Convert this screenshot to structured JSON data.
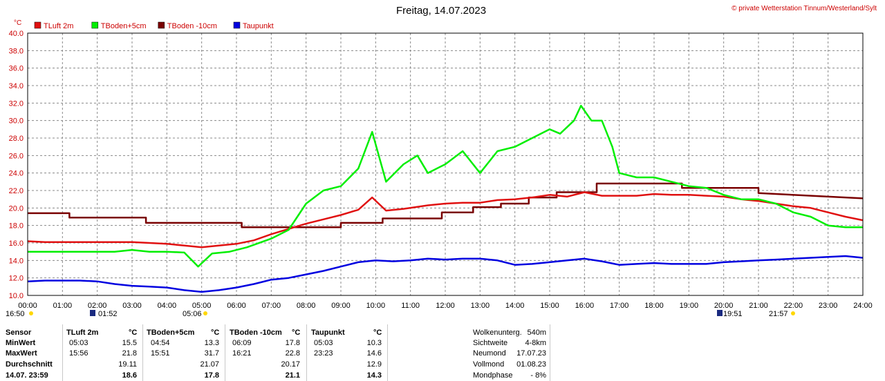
{
  "header": {
    "title": "Freitag, 14.07.2023",
    "copyright": "© private Wetterstation Tinnum/Westerland/Sylt",
    "unit": "°C"
  },
  "legend": [
    {
      "name": "TLuft 2m",
      "color": "#e01010"
    },
    {
      "name": "TBoden+5cm",
      "color": "#00ee00"
    },
    {
      "name": "TBoden -10cm",
      "color": "#7a0000"
    },
    {
      "name": "Taupunkt",
      "color": "#0000e0"
    }
  ],
  "chart_data": {
    "type": "line",
    "title": "Freitag, 14.07.2023",
    "ylabel": "°C",
    "xlim": [
      0,
      24
    ],
    "ylim": [
      10,
      40
    ],
    "grid": true,
    "legend_position": "top-left",
    "y_ticks": [
      "10.0",
      "12.0",
      "14.0",
      "16.0",
      "18.0",
      "20.0",
      "22.0",
      "24.0",
      "26.0",
      "28.0",
      "30.0",
      "32.0",
      "34.0",
      "36.0",
      "38.0",
      "40.0"
    ],
    "x_ticks": [
      "00:00",
      "01:00",
      "02:00",
      "03:00",
      "04:00",
      "05:00",
      "06:00",
      "07:00",
      "08:00",
      "09:00",
      "10:00",
      "11:00",
      "12:00",
      "13:00",
      "14:00",
      "15:00",
      "16:00",
      "17:00",
      "18:00",
      "19:00",
      "20:00",
      "21:00",
      "22:00",
      "23:00",
      "24:00"
    ],
    "sun_moon_times": [
      "16:50",
      "01:52",
      "05:06",
      "19:51",
      "21:57"
    ],
    "series": [
      {
        "name": "TLuft 2m",
        "color": "#e01010",
        "x": [
          0,
          0.5,
          1,
          1.5,
          2,
          2.5,
          3,
          3.5,
          4,
          4.5,
          5,
          5.5,
          6,
          6.5,
          7,
          7.5,
          8,
          8.5,
          9,
          9.5,
          9.9,
          10.3,
          10.8,
          11.5,
          12,
          12.5,
          13,
          13.5,
          14,
          14.5,
          15,
          15.5,
          16,
          16.5,
          17,
          17.5,
          18,
          18.5,
          19,
          19.5,
          20,
          20.5,
          21,
          21.5,
          22,
          22.5,
          23,
          23.5,
          24
        ],
        "values": [
          16.2,
          16.1,
          16.1,
          16.1,
          16.1,
          16.1,
          16.1,
          16.0,
          15.9,
          15.7,
          15.5,
          15.7,
          15.9,
          16.3,
          17.0,
          17.6,
          18.2,
          18.7,
          19.2,
          19.8,
          21.2,
          19.7,
          19.9,
          20.3,
          20.5,
          20.6,
          20.6,
          20.9,
          21.0,
          21.2,
          21.5,
          21.3,
          21.8,
          21.4,
          21.4,
          21.4,
          21.6,
          21.5,
          21.5,
          21.4,
          21.3,
          21.0,
          20.8,
          20.5,
          20.2,
          20.0,
          19.5,
          19.0,
          18.6
        ]
      },
      {
        "name": "TBoden+5cm",
        "color": "#00ee00",
        "x": [
          0,
          0.5,
          1,
          1.5,
          2,
          2.5,
          3,
          3.5,
          4,
          4.5,
          4.9,
          5.3,
          5.8,
          6.3,
          7,
          7.5,
          8,
          8.5,
          9,
          9.5,
          9.9,
          10.3,
          10.8,
          11.2,
          11.5,
          12,
          12.5,
          13,
          13.5,
          14,
          14.5,
          15,
          15.3,
          15.7,
          15.9,
          16.2,
          16.5,
          16.8,
          17,
          17.5,
          18,
          18.5,
          19,
          19.5,
          20,
          20.5,
          21,
          21.5,
          22,
          22.5,
          23,
          23.5,
          24
        ],
        "values": [
          15.0,
          15.0,
          15.0,
          15.0,
          15.0,
          15.0,
          15.2,
          15.0,
          15.0,
          14.9,
          13.3,
          14.8,
          15.0,
          15.5,
          16.5,
          17.5,
          20.5,
          22.0,
          22.5,
          24.5,
          28.7,
          23.0,
          25.0,
          26.0,
          24.0,
          25.0,
          26.5,
          24.0,
          26.5,
          27.0,
          28.0,
          29.0,
          28.5,
          30.0,
          31.7,
          30.0,
          30.0,
          27.0,
          24.0,
          23.5,
          23.5,
          23.0,
          22.5,
          22.3,
          21.5,
          21.0,
          21.0,
          20.5,
          19.5,
          19.0,
          18.0,
          17.8,
          17.8
        ]
      },
      {
        "name": "TBoden -10cm",
        "color": "#7a0000",
        "x": [
          0,
          1.2,
          1.2,
          3.4,
          3.4,
          6.15,
          6.15,
          9,
          9,
          10.2,
          10.2,
          11.9,
          11.9,
          12.8,
          12.8,
          13.6,
          13.6,
          14.4,
          14.4,
          15.2,
          15.2,
          16.35,
          16.35,
          18.8,
          18.8,
          21,
          21,
          24
        ],
        "values": [
          19.4,
          19.4,
          18.9,
          18.9,
          18.3,
          18.3,
          17.8,
          17.8,
          18.3,
          18.3,
          18.8,
          18.8,
          19.5,
          19.5,
          20.1,
          20.1,
          20.5,
          20.5,
          21.2,
          21.2,
          21.8,
          21.8,
          22.8,
          22.8,
          22.3,
          22.3,
          21.7,
          21.1
        ]
      },
      {
        "name": "Taupunkt",
        "color": "#0000e0",
        "x": [
          0,
          0.5,
          1,
          1.5,
          2,
          2.5,
          3,
          3.5,
          4,
          4.5,
          5,
          5.5,
          6,
          6.5,
          7,
          7.5,
          8,
          8.5,
          9,
          9.5,
          10,
          10.5,
          11,
          11.5,
          12,
          12.5,
          13,
          13.5,
          14,
          14.5,
          15,
          15.5,
          16,
          16.5,
          17,
          17.5,
          18,
          18.5,
          19,
          19.5,
          20,
          20.5,
          21,
          21.5,
          22,
          22.5,
          23,
          23.5,
          24
        ],
        "values": [
          11.6,
          11.7,
          11.7,
          11.7,
          11.6,
          11.3,
          11.1,
          11.0,
          10.9,
          10.6,
          10.4,
          10.6,
          10.9,
          11.3,
          11.8,
          12.0,
          12.4,
          12.8,
          13.3,
          13.8,
          14.0,
          13.9,
          14.0,
          14.2,
          14.1,
          14.2,
          14.2,
          14.0,
          13.5,
          13.6,
          13.8,
          14.0,
          14.2,
          13.9,
          13.5,
          13.6,
          13.7,
          13.6,
          13.6,
          13.6,
          13.8,
          13.9,
          14.0,
          14.1,
          14.2,
          14.3,
          14.4,
          14.5,
          14.3
        ]
      }
    ]
  },
  "table": {
    "headers": {
      "sensor": "Sensor",
      "tluft": "TLuft 2m",
      "tb5": "TBoden+5cm",
      "tb10": "TBoden -10cm",
      "taup": "Taupunkt",
      "unit": "°C"
    },
    "rows": [
      {
        "label": "MinWert",
        "tluft_t": "05:03",
        "tluft_v": "15.5",
        "tb5_t": "04:54",
        "tb5_v": "13.3",
        "tb10_t": "06:09",
        "tb10_v": "17.8",
        "taup_t": "05:03",
        "taup_v": "10.3"
      },
      {
        "label": "MaxWert",
        "tluft_t": "15:56",
        "tluft_v": "21.8",
        "tb5_t": "15:51",
        "tb5_v": "31.7",
        "tb10_t": "16:21",
        "tb10_v": "22.8",
        "taup_t": "23:23",
        "taup_v": "14.6"
      },
      {
        "label": "Durchschnitt",
        "tluft_t": "",
        "tluft_v": "19.11",
        "tb5_t": "",
        "tb5_v": "21.07",
        "tb10_t": "",
        "tb10_v": "20.17",
        "taup_t": "",
        "taup_v": "12.9"
      },
      {
        "label": "14.07. 23:59",
        "tluft_t": "",
        "tluft_v": "18.6",
        "tb5_t": "",
        "tb5_v": "17.8",
        "tb10_t": "",
        "tb10_v": "21.1",
        "taup_t": "",
        "taup_v": "14.3"
      }
    ],
    "info": [
      {
        "label": "Wolkenunterg.",
        "value": "540m"
      },
      {
        "label": "Sichtweite",
        "value": "4-8km"
      },
      {
        "label": "Neumond",
        "value": "17.07.23"
      },
      {
        "label": "Vollmond",
        "value": "01.08.23"
      },
      {
        "label": "Mondphase",
        "value": "- 8%"
      }
    ]
  }
}
